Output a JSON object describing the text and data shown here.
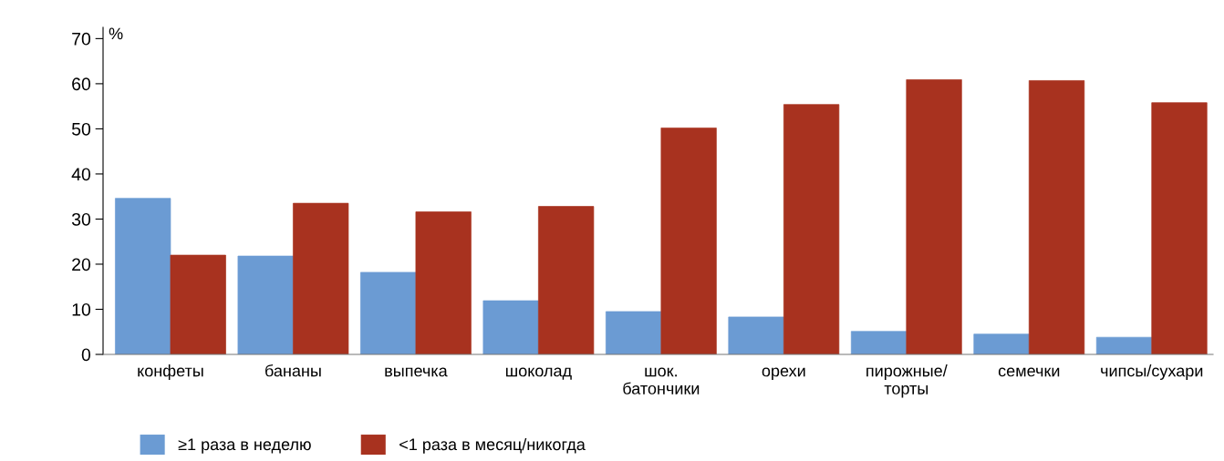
{
  "chart_data": {
    "type": "bar",
    "ylabel": "%",
    "categories": [
      "конфеты",
      "бананы",
      "выпечка",
      "шоколад",
      "шок.\nбатончики",
      "орехи",
      "пирожные/\nторты",
      "семечки",
      "чипсы/сухари"
    ],
    "series": [
      {
        "name": "≥1 раза в неделю",
        "color": "#6b9bd3",
        "values": [
          34.6,
          21.8,
          18.2,
          11.9,
          9.5,
          8.3,
          5.1,
          4.5,
          3.8
        ]
      },
      {
        "name": "<1 раза в месяц/никогда",
        "color": "#a8321f",
        "values": [
          22.0,
          33.5,
          31.6,
          32.8,
          50.2,
          55.4,
          60.9,
          60.7,
          55.8
        ]
      }
    ],
    "ylim": [
      0,
      72.5
    ],
    "yticks": [
      0,
      10,
      20,
      30,
      40,
      50,
      60,
      70
    ],
    "grid": false,
    "legend": "bottom left"
  }
}
